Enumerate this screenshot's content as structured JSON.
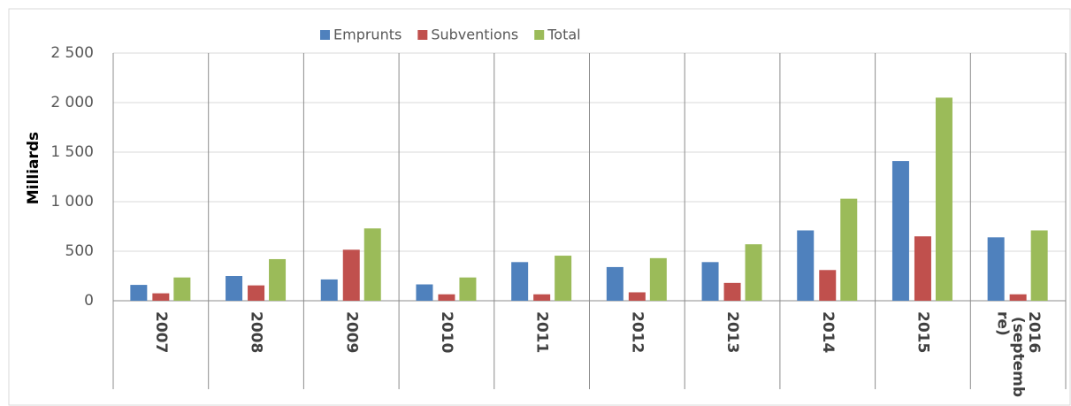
{
  "chart_data": {
    "type": "bar",
    "categories": [
      "2007",
      "2008",
      "2009",
      "2010",
      "2011",
      "2012",
      "2013",
      "2014",
      "2015",
      "2016 (septembre)"
    ],
    "series": [
      {
        "name": "Emprunts",
        "color": "#4f81bd",
        "values": [
          160,
          250,
          215,
          165,
          390,
          340,
          390,
          710,
          1410,
          640
        ]
      },
      {
        "name": "Subventions",
        "color": "#c0504d",
        "values": [
          75,
          155,
          515,
          65,
          65,
          85,
          180,
          310,
          650,
          65
        ]
      },
      {
        "name": "Total",
        "color": "#9bbb59",
        "values": [
          235,
          420,
          730,
          235,
          455,
          430,
          570,
          1030,
          2050,
          710
        ]
      }
    ],
    "y_label": "Milliards",
    "ylim": [
      0,
      2500
    ],
    "yticks": [
      0,
      500,
      {
        "value": 1000,
        "label": "1 000"
      },
      {
        "value": 1500,
        "label": "1 500"
      },
      {
        "value": 2000,
        "label": "2 000"
      },
      {
        "value": 2500,
        "label": "2 500"
      }
    ],
    "grid": true,
    "legend": "top"
  }
}
